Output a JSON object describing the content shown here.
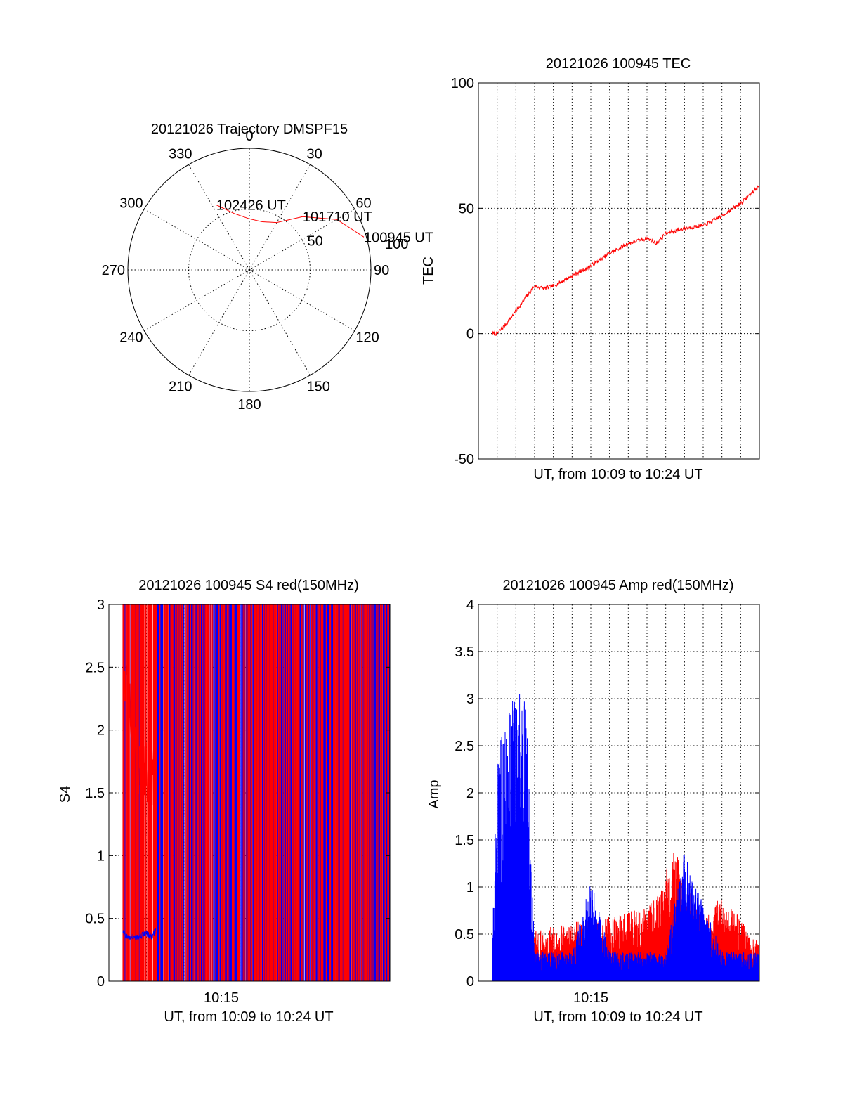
{
  "colors": {
    "red": "#ff0000",
    "blue": "#0000ff",
    "axis": "#000000",
    "background": "#ffffff"
  },
  "chart_data": [
    {
      "type": "polar",
      "title": "20121026 Trajectory DMSPF15",
      "angle_ticks": [
        "0",
        "30",
        "60",
        "90",
        "120",
        "150",
        "180",
        "210",
        "240",
        "270",
        "300",
        "330"
      ],
      "radial_ticks": [
        "50",
        "100"
      ],
      "radial_range": [
        0,
        100
      ],
      "grid": true,
      "series": [
        {
          "color": "#ff0000",
          "points": [
            [
              74,
              98
            ],
            [
              60,
              83
            ],
            [
              45,
              62
            ],
            [
              30,
              45
            ],
            [
              15,
              41
            ],
            [
              0,
              42
            ],
            [
              -15,
              48
            ],
            [
              -27,
              60
            ]
          ]
        }
      ],
      "annotations": [
        {
          "text": "102426 UT",
          "azimuth": -27,
          "zenith": 60
        },
        {
          "text": "101710 UT",
          "azimuth": 45,
          "zenith": 62
        },
        {
          "text": "100945 UT",
          "azimuth": 74,
          "zenith": 98
        }
      ]
    },
    {
      "type": "line",
      "title": "20121026 100945 TEC",
      "xlabel": "UT, from 10:09 to 10:24 UT",
      "ylabel": "TEC",
      "xlim": [
        "10:09:00",
        "10:24:00"
      ],
      "ylim": [
        -50,
        100
      ],
      "yticks": [
        "-50",
        "0",
        "50",
        "100"
      ],
      "grid": true,
      "series": [
        {
          "color": "#ff0000",
          "x": [
            "10:09:45",
            "10:10:00",
            "10:10:30",
            "10:11:00",
            "10:11:30",
            "10:12:00",
            "10:12:30",
            "10:13:00",
            "10:14:00",
            "10:15:00",
            "10:16:00",
            "10:17:00",
            "10:18:00",
            "10:18:30",
            "10:19:00",
            "10:20:00",
            "10:21:00",
            "10:22:00",
            "10:23:00",
            "10:24:00"
          ],
          "y": [
            0,
            0,
            4,
            9,
            14,
            19,
            18,
            19,
            23,
            27,
            32,
            36,
            38,
            36,
            40,
            42,
            43,
            47,
            52,
            59
          ]
        }
      ]
    },
    {
      "type": "line",
      "title": "20121026 100945 S4 red(150MHz)",
      "xlabel": "UT, from 10:09 to 10:24 UT",
      "ylabel": "S4",
      "xlim": [
        "10:09:00",
        "10:24:00"
      ],
      "ylim": [
        0,
        3
      ],
      "yticks": [
        "0",
        "0.5",
        "1",
        "1.5",
        "2",
        "2.5",
        "3"
      ],
      "xticks": [
        "10:15"
      ],
      "grid": true,
      "series": [
        {
          "color": "#ff0000",
          "x": [
            "10:09:45",
            "10:10:00",
            "10:10:30",
            "10:11:00",
            "10:11:15",
            "10:11:30"
          ],
          "y": [
            2.5,
            2.2,
            1.8,
            1.6,
            1.9,
            1.3
          ]
        },
        {
          "color": "#0000ff",
          "x": [
            "10:09:45",
            "10:10:00",
            "10:10:30",
            "10:11:00",
            "10:11:15",
            "10:11:30"
          ],
          "y": [
            0.4,
            0.35,
            0.35,
            0.38,
            0.35,
            0.4
          ]
        }
      ]
    },
    {
      "type": "line",
      "title": "20121026 100945 Amp red(150MHz)",
      "xlabel": "UT, from 10:09 to 10:24 UT",
      "ylabel": "Amp",
      "xlim": [
        "10:09:00",
        "10:24:00"
      ],
      "ylim": [
        0,
        4
      ],
      "yticks": [
        "0",
        "0.5",
        "1",
        "1.5",
        "2",
        "2.5",
        "3",
        "3.5",
        "4"
      ],
      "xticks": [
        "10:15"
      ],
      "grid": true,
      "series": [
        {
          "color": "#ff0000",
          "x": [
            "10:09:45",
            "10:11:30",
            "10:12:00",
            "10:14:00",
            "10:16:00",
            "10:18:00",
            "10:19:30",
            "10:21:00",
            "10:22:00",
            "10:24:00"
          ],
          "y": [
            0.25,
            0.2,
            0.35,
            0.4,
            0.45,
            0.5,
            0.9,
            0.4,
            0.6,
            0.25
          ]
        },
        {
          "color": "#0000ff",
          "x": [
            "10:09:45",
            "10:10:00",
            "10:11:00",
            "10:11:30",
            "10:12:00",
            "10:14:00",
            "10:15:00",
            "10:16:00",
            "10:18:00",
            "10:19:00",
            "10:20:00",
            "10:22:00",
            "10:24:00"
          ],
          "y": [
            0.3,
            1.6,
            2.0,
            2.1,
            0.2,
            0.2,
            0.7,
            0.2,
            0.2,
            0.2,
            0.9,
            0.2,
            0.2
          ]
        }
      ]
    }
  ]
}
